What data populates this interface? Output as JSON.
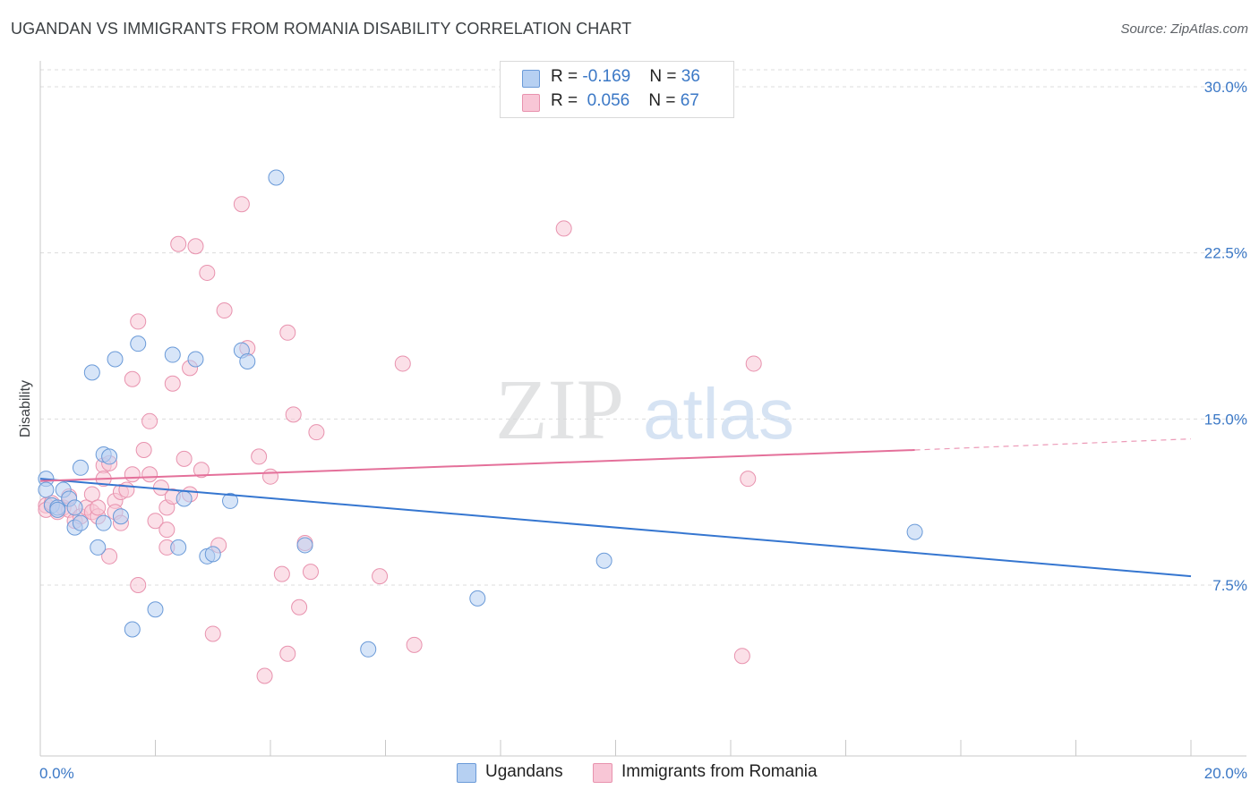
{
  "header": {
    "title": "UGANDAN VS IMMIGRANTS FROM ROMANIA DISABILITY CORRELATION CHART",
    "source": "Source: ZipAtlas.com"
  },
  "watermark": {
    "part1": "ZIP",
    "part2": "atlas"
  },
  "legend": {
    "rows": [
      {
        "r_label": "R = ",
        "r_value": "-0.169",
        "n_label": "N = ",
        "n_value": "36"
      },
      {
        "r_label": "R = ",
        "r_value": " 0.056",
        "n_label": "N = ",
        "n_value": "67"
      }
    ]
  },
  "colors": {
    "ugandans_fill": "#b6d0f2",
    "ugandans_stroke": "#6a9ad8",
    "ugandans_line": "#3576d0",
    "romania_fill": "#f8c6d6",
    "romania_stroke": "#e892ae",
    "romania_line": "#e4709a",
    "tick_text": "#3b78c6",
    "grid": "#dcdcdc"
  },
  "chart_data": {
    "type": "scatter",
    "title": "UGANDAN VS IMMIGRANTS FROM ROMANIA DISABILITY CORRELATION CHART",
    "ylabel": "Disability",
    "xlabel": "",
    "xlim": [
      0,
      20
    ],
    "ylim": [
      0,
      30
    ],
    "x_tick_labels": [
      "0.0%",
      "20.0%"
    ],
    "y_ticks": [
      7.5,
      15.0,
      22.5,
      30.0
    ],
    "y_tick_labels": [
      "7.5%",
      "15.0%",
      "22.5%",
      "30.0%"
    ],
    "grid": true,
    "legend_position": "top-center and bottom",
    "series": [
      {
        "name": "Ugandans",
        "r": -0.169,
        "n": 36,
        "trend": {
          "x": [
            0,
            20
          ],
          "y": [
            12.3,
            7.9
          ]
        },
        "points": [
          [
            0.1,
            12.3
          ],
          [
            0.1,
            11.8
          ],
          [
            0.2,
            11.1
          ],
          [
            0.3,
            11.0
          ],
          [
            0.4,
            11.8
          ],
          [
            0.5,
            11.4
          ],
          [
            0.6,
            11.0
          ],
          [
            0.6,
            10.1
          ],
          [
            0.7,
            10.3
          ],
          [
            0.7,
            12.8
          ],
          [
            0.9,
            17.1
          ],
          [
            1.0,
            9.2
          ],
          [
            1.1,
            13.4
          ],
          [
            1.1,
            10.3
          ],
          [
            1.2,
            13.3
          ],
          [
            1.3,
            17.7
          ],
          [
            1.4,
            10.6
          ],
          [
            1.6,
            5.5
          ],
          [
            1.7,
            18.4
          ],
          [
            2.0,
            6.4
          ],
          [
            2.3,
            17.9
          ],
          [
            2.4,
            9.2
          ],
          [
            2.5,
            11.4
          ],
          [
            2.7,
            17.7
          ],
          [
            2.9,
            8.8
          ],
          [
            3.0,
            8.9
          ],
          [
            3.3,
            11.3
          ],
          [
            3.5,
            18.1
          ],
          [
            3.6,
            17.6
          ],
          [
            4.1,
            25.9
          ],
          [
            4.6,
            9.3
          ],
          [
            5.7,
            4.6
          ],
          [
            7.6,
            6.9
          ],
          [
            9.8,
            8.6
          ],
          [
            15.2,
            9.9
          ],
          [
            0.3,
            10.9
          ]
        ]
      },
      {
        "name": "Immigrants from Romania",
        "r": 0.056,
        "n": 67,
        "trend": {
          "x": [
            0,
            15.2
          ],
          "y": [
            12.2,
            13.6
          ]
        },
        "trend_dashed": {
          "x": [
            15.2,
            20
          ],
          "y": [
            13.6,
            14.1
          ]
        },
        "points": [
          [
            0.1,
            11.1
          ],
          [
            0.1,
            10.9
          ],
          [
            0.2,
            11.2
          ],
          [
            0.3,
            10.8
          ],
          [
            0.4,
            11.0
          ],
          [
            0.5,
            10.9
          ],
          [
            0.5,
            11.5
          ],
          [
            0.6,
            10.4
          ],
          [
            0.7,
            10.6
          ],
          [
            0.8,
            11.0
          ],
          [
            0.9,
            10.8
          ],
          [
            0.9,
            11.6
          ],
          [
            1.0,
            10.6
          ],
          [
            1.1,
            12.9
          ],
          [
            1.1,
            12.3
          ],
          [
            1.2,
            13.0
          ],
          [
            1.2,
            8.8
          ],
          [
            1.3,
            11.3
          ],
          [
            1.3,
            10.8
          ],
          [
            1.4,
            10.3
          ],
          [
            1.4,
            11.7
          ],
          [
            1.5,
            11.8
          ],
          [
            1.6,
            12.5
          ],
          [
            1.6,
            16.8
          ],
          [
            1.7,
            7.5
          ],
          [
            1.7,
            19.4
          ],
          [
            1.8,
            13.6
          ],
          [
            1.9,
            14.9
          ],
          [
            1.9,
            12.5
          ],
          [
            2.0,
            10.4
          ],
          [
            2.1,
            11.9
          ],
          [
            2.2,
            11.0
          ],
          [
            2.2,
            9.2
          ],
          [
            2.3,
            11.5
          ],
          [
            2.3,
            16.6
          ],
          [
            2.4,
            22.9
          ],
          [
            2.5,
            13.2
          ],
          [
            2.6,
            17.3
          ],
          [
            2.6,
            11.6
          ],
          [
            2.7,
            22.8
          ],
          [
            2.8,
            12.7
          ],
          [
            2.9,
            21.6
          ],
          [
            3.0,
            5.3
          ],
          [
            3.1,
            9.3
          ],
          [
            3.2,
            19.9
          ],
          [
            3.6,
            18.2
          ],
          [
            3.5,
            24.7
          ],
          [
            3.8,
            13.3
          ],
          [
            3.9,
            3.4
          ],
          [
            4.0,
            12.4
          ],
          [
            4.2,
            8.0
          ],
          [
            4.3,
            18.9
          ],
          [
            4.3,
            4.4
          ],
          [
            4.4,
            15.2
          ],
          [
            4.5,
            6.5
          ],
          [
            4.6,
            9.4
          ],
          [
            4.7,
            8.1
          ],
          [
            4.8,
            14.4
          ],
          [
            5.9,
            7.9
          ],
          [
            6.3,
            17.5
          ],
          [
            6.5,
            4.8
          ],
          [
            9.1,
            23.6
          ],
          [
            12.4,
            17.5
          ],
          [
            12.2,
            4.3
          ],
          [
            12.3,
            12.3
          ],
          [
            2.2,
            10.0
          ],
          [
            1.0,
            11.0
          ]
        ]
      }
    ]
  },
  "bottom_legend": {
    "items": [
      "Ugandans",
      "Immigrants from Romania"
    ]
  }
}
